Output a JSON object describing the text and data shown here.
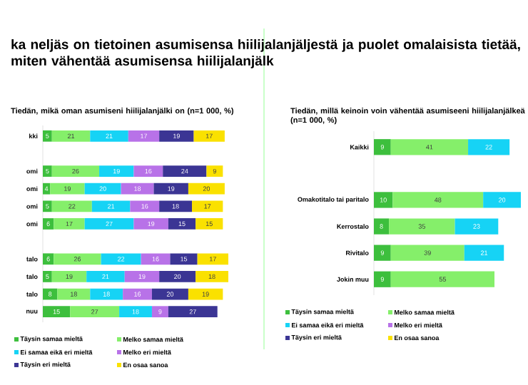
{
  "chart_data": [
    {
      "type": "bar",
      "orientation": "horizontal",
      "stacked": true,
      "data_labels": true,
      "legend": "bottom",
      "title": "ka neljäs on tietoinen asumisensa hiilijalanjäljestä ja puolet omalaisista tietää, miten vähentää asumisensa hiilijalanjälk",
      "subtitle": "Tiedän, mikä oman asumiseni hiilijalanjälki on (n=1 000, %)",
      "categories": [
        "kki",
        null,
        "omi",
        "omi",
        "omi",
        "omi",
        null,
        "talo",
        "talo",
        "talo",
        "nuu"
      ],
      "series": [
        {
          "name": "Täysin samaa mieltä",
          "color": "#3dbf3d",
          "values": [
            5,
            null,
            5,
            4,
            5,
            6,
            null,
            6,
            5,
            8,
            15
          ]
        },
        {
          "name": "Melko samaa mieltä",
          "color": "#85ef6a",
          "values": [
            21,
            null,
            26,
            19,
            22,
            17,
            null,
            26,
            19,
            18,
            27
          ]
        },
        {
          "name": "Ei samaa eikä eri mieltä",
          "color": "#16d3f5",
          "values": [
            21,
            null,
            19,
            20,
            21,
            27,
            null,
            22,
            21,
            18,
            18
          ]
        },
        {
          "name": "Melko eri mieltä",
          "color": "#b872e8",
          "values": [
            17,
            null,
            16,
            18,
            16,
            19,
            null,
            16,
            19,
            16,
            9
          ]
        },
        {
          "name": "Täysin eri mieltä",
          "color": "#3b3594",
          "values": [
            19,
            null,
            24,
            19,
            18,
            15,
            null,
            15,
            20,
            20,
            27
          ]
        },
        {
          "name": "En osaa sanoa",
          "color": "#fae100",
          "values": [
            17,
            null,
            9,
            20,
            17,
            15,
            null,
            17,
            18,
            19,
            null
          ]
        }
      ]
    },
    {
      "type": "bar",
      "orientation": "horizontal",
      "stacked": true,
      "data_labels": true,
      "legend": "bottom",
      "subtitle": "Tiedän, millä keinoin voin vähentää asumiseeni hiilijalanjälkeä (n=1 000, %)",
      "categories": [
        "Kaikki",
        null,
        "Omakotitalo tai paritalo",
        "Kerrostalo",
        "Rivitalo",
        "Jokin muu"
      ],
      "series": [
        {
          "name": "Täysin samaa mieltä",
          "color": "#3dbf3d",
          "values": [
            9,
            null,
            10,
            8,
            9,
            9
          ]
        },
        {
          "name": "Melko samaa mieltä",
          "color": "#85ef6a",
          "values": [
            41,
            null,
            48,
            35,
            39,
            55
          ]
        },
        {
          "name": "Ei samaa eikä eri mieltä",
          "color": "#16d3f5",
          "values": [
            22,
            null,
            20,
            23,
            21,
            null
          ]
        },
        {
          "name": "Melko eri mieltä",
          "color": "#b872e8",
          "values": [
            null,
            null,
            null,
            null,
            null,
            null
          ]
        },
        {
          "name": "Täysin eri mieltä",
          "color": "#3b3594",
          "values": [
            null,
            null,
            null,
            null,
            null,
            null
          ]
        },
        {
          "name": "En osaa sanoa",
          "color": "#fae100",
          "values": [
            null,
            null,
            null,
            null,
            null,
            null
          ]
        }
      ]
    }
  ]
}
